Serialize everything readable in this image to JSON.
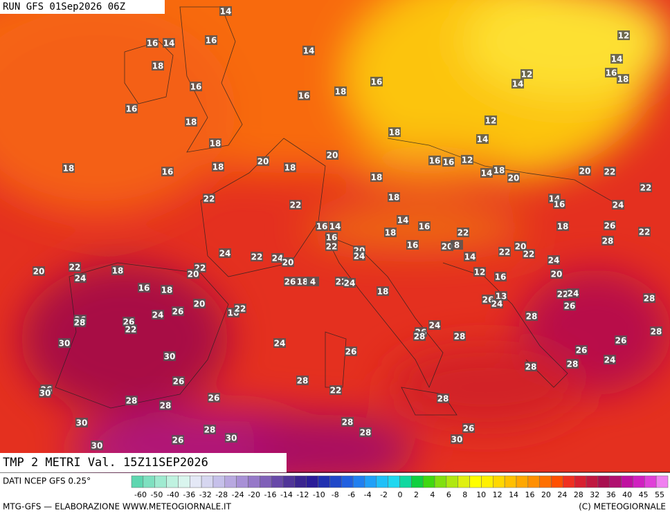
{
  "header": {
    "run": "RUN GFS 01Sep2026 06Z",
    "title": "TMP 2 METRI Val. 15Z11SEP2026"
  },
  "footer": {
    "source": "DATI NCEP GFS 0.25°",
    "credit": "MTG-GFS — ELABORAZIONE WWW.METEOGIORNALE.IT",
    "copyright": "(C) METEOGIORNALE"
  },
  "scale": {
    "labels": [
      -60,
      -50,
      -40,
      -36,
      -32,
      -28,
      -24,
      -20,
      -16,
      -14,
      -12,
      -10,
      -8,
      -6,
      -4,
      -2,
      0,
      2,
      4,
      6,
      8,
      10,
      12,
      14,
      16,
      20,
      24,
      28,
      32,
      36,
      40,
      45,
      55
    ],
    "colors": [
      "#5fd6b0",
      "#7fe0c0",
      "#9fead0",
      "#bff2e0",
      "#d9f5ee",
      "#e4e8f6",
      "#d6d6f0",
      "#c6c0ea",
      "#b8a8e0",
      "#a890d6",
      "#9678c8",
      "#8060b8",
      "#6848a8",
      "#503498",
      "#3a2490",
      "#2a1c98",
      "#2030b0",
      "#2048c8",
      "#2060e0",
      "#2080f0",
      "#20a0f8",
      "#20c0f8",
      "#20d8f0",
      "#10d8a0",
      "#10d040",
      "#40d810",
      "#80e010",
      "#b0e810",
      "#e0f010",
      "#ffff00",
      "#fff000",
      "#ffd800",
      "#ffc000",
      "#ffa800",
      "#ff9000",
      "#ff7000",
      "#ff5000",
      "#f03020",
      "#d82030",
      "#c01840",
      "#a81050",
      "#b01070",
      "#c010a0",
      "#d020c0",
      "#e040d8",
      "#f080f0"
    ]
  },
  "map": {
    "labels": [
      14,
      16,
      14,
      16,
      14,
      18,
      16,
      16,
      18,
      18,
      16,
      18,
      16,
      12,
      14,
      12,
      14,
      16,
      18,
      12,
      14,
      18,
      20,
      20,
      18,
      18,
      16,
      18,
      16,
      16,
      12,
      14,
      18,
      20,
      18,
      20,
      22,
      22,
      22,
      22,
      18,
      14,
      16,
      24,
      14,
      16,
      16,
      14,
      16,
      22,
      18,
      22,
      18,
      26,
      22,
      28,
      16,
      20,
      8,
      20,
      24,
      20,
      22,
      22,
      22,
      24,
      20,
      24,
      14,
      24,
      20,
      22,
      24,
      18,
      22,
      20,
      12,
      16,
      20,
      26,
      18,
      4,
      22,
      24,
      16,
      18,
      18,
      22,
      24,
      26,
      13,
      24,
      20,
      16,
      22,
      26,
      28,
      26,
      24,
      26,
      28,
      26,
      22,
      24,
      26,
      28,
      28,
      28,
      26,
      28,
      30,
      24,
      26,
      30,
      26,
      28,
      24,
      28,
      26,
      28,
      22,
      26,
      30,
      26,
      28,
      28,
      28,
      30,
      28,
      30,
      28,
      28,
      26,
      30,
      26,
      30
    ]
  }
}
